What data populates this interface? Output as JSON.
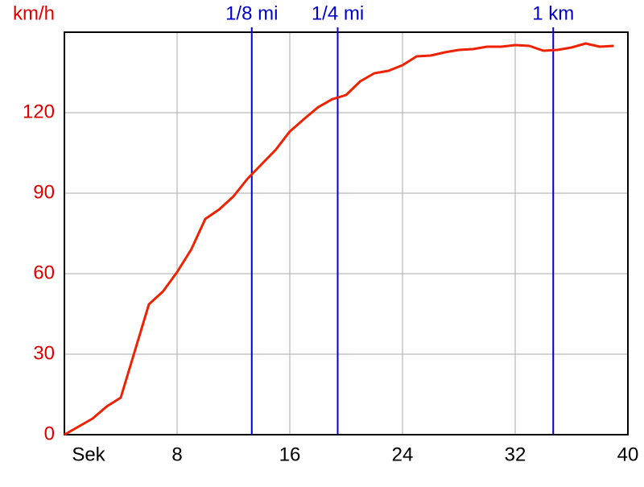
{
  "chart_data": {
    "type": "line",
    "x": [
      0,
      1,
      2,
      3,
      4,
      6,
      7,
      8,
      9,
      10,
      11,
      12,
      13,
      14,
      15,
      16,
      17,
      18,
      19,
      20,
      21,
      22,
      23,
      24,
      25,
      26,
      27,
      28,
      29,
      30,
      31,
      32,
      33,
      34,
      35,
      36,
      37,
      38,
      39
    ],
    "values": [
      0,
      3,
      6,
      10.5,
      13.8,
      48.6,
      53.4,
      60.6,
      69,
      80.4,
      84,
      88.8,
      95.4,
      100.8,
      106.2,
      113,
      117.6,
      122,
      125,
      126.6,
      131.7,
      134.7,
      135.6,
      137.7,
      141,
      141.3,
      142.5,
      143.4,
      143.7,
      144.6,
      144.6,
      145.2,
      144.9,
      143.1,
      143.4,
      144.3,
      145.8,
      144.6,
      144.9
    ],
    "color": "#ee2200",
    "xlim": [
      0,
      40
    ],
    "xticks": [
      {
        "value": 0,
        "label": "Sek"
      },
      8,
      16,
      24,
      32,
      40
    ],
    "ylim": [
      0,
      150
    ],
    "yticks": [
      0,
      30,
      60,
      90,
      120,
      {
        "value": 150,
        "label": "km/h"
      }
    ],
    "grid": true,
    "tick_color_y": "#dd0000",
    "tick_color_x": "#000000",
    "annotations": [
      {
        "label": "1/8 mi",
        "x": 13.3
      },
      {
        "label": "1/4 mi",
        "x": 19.4
      },
      {
        "label": "1 km",
        "x": 34.7
      }
    ],
    "annotation_color": "#0000cc"
  }
}
